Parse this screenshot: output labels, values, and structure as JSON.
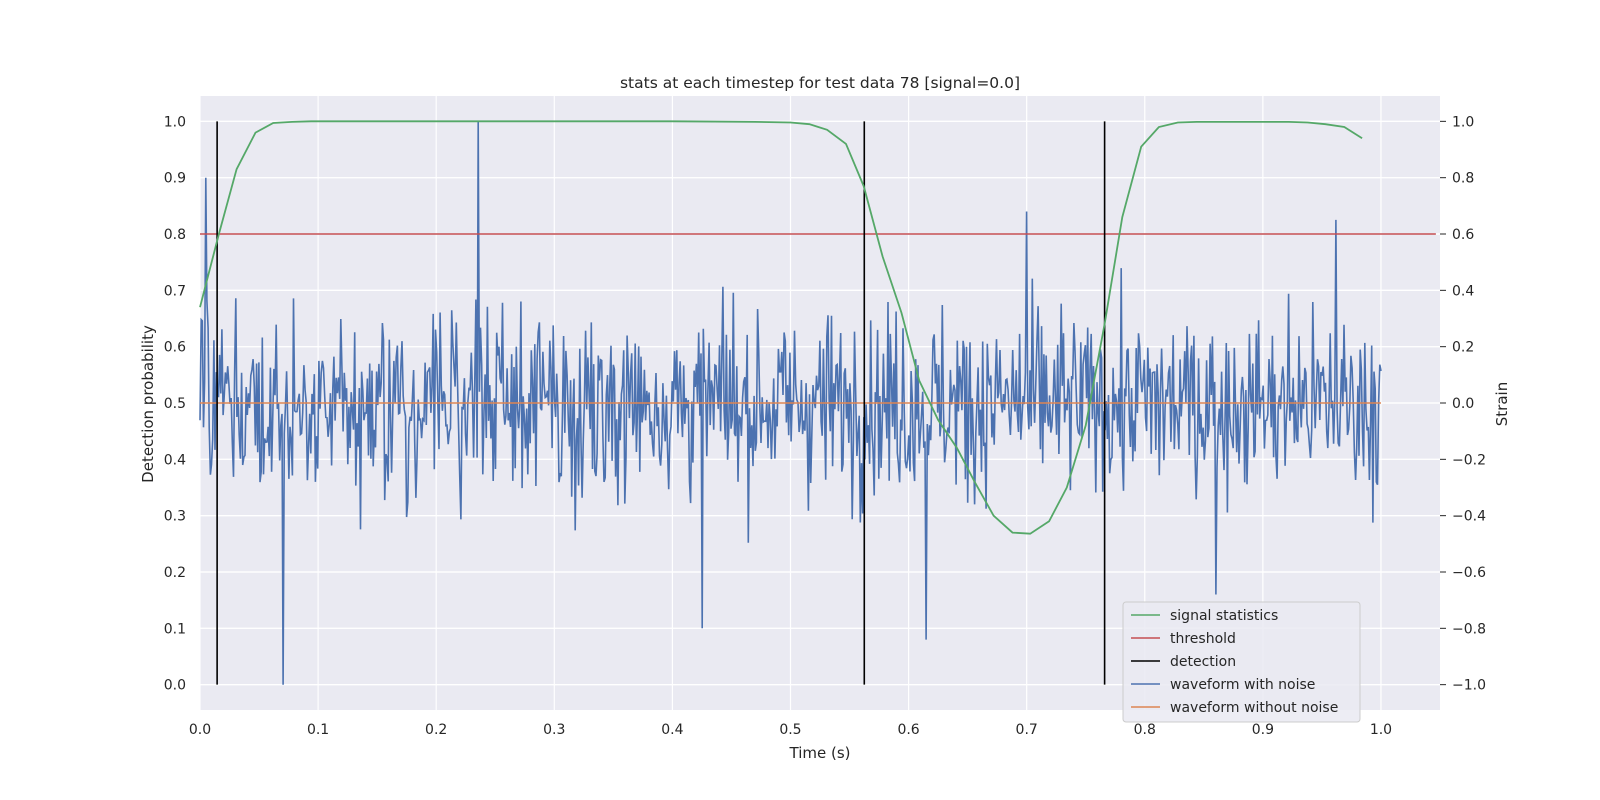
{
  "chart_data": {
    "type": "line",
    "title": "stats at each timestep for test data 78 [signal=0.0]",
    "xlabel": "Time (s)",
    "ylabel": "Detection probability",
    "y2label": "Strain",
    "xlim": [
      0.0,
      1.05
    ],
    "ylim": [
      -0.045,
      1.045
    ],
    "y2lim": [
      -1.09,
      1.09
    ],
    "grid": true,
    "legend_position": "lower-right",
    "xticks": [
      "0.0",
      "0.1",
      "0.2",
      "0.3",
      "0.4",
      "0.5",
      "0.6",
      "0.7",
      "0.8",
      "0.9",
      "1.0"
    ],
    "yticks": [
      "0.0",
      "0.1",
      "0.2",
      "0.3",
      "0.4",
      "0.5",
      "0.6",
      "0.7",
      "0.8",
      "0.9",
      "1.0"
    ],
    "y2ticks": [
      "−1.0",
      "−0.8",
      "−0.6",
      "−0.4",
      "−0.2",
      "0.0",
      "0.2",
      "0.4",
      "0.6",
      "0.8",
      "1.0"
    ],
    "colors": {
      "signal_statistics": "#55a868",
      "threshold": "#c44e52",
      "detection": "#000000",
      "waveform_with_noise": "#4c72b0",
      "waveform_without_noise": "#dd8452"
    },
    "series": [
      {
        "name": "signal statistics",
        "axis": "left",
        "x": [
          0.0,
          0.016,
          0.031,
          0.047,
          0.062,
          0.078,
          0.094,
          0.125,
          0.2,
          0.3,
          0.4,
          0.47,
          0.5,
          0.516,
          0.531,
          0.547,
          0.562,
          0.578,
          0.594,
          0.609,
          0.625,
          0.641,
          0.656,
          0.672,
          0.688,
          0.703,
          0.719,
          0.734,
          0.75,
          0.766,
          0.781,
          0.797,
          0.812,
          0.828,
          0.844,
          0.875,
          0.9,
          0.922,
          0.938,
          0.953,
          0.969,
          0.984
        ],
        "y": [
          0.67,
          0.8,
          0.915,
          0.98,
          0.997,
          0.999,
          1.0,
          1.0,
          1.0,
          1.0,
          1.0,
          0.999,
          0.998,
          0.995,
          0.985,
          0.96,
          0.885,
          0.76,
          0.66,
          0.54,
          0.47,
          0.42,
          0.36,
          0.3,
          0.27,
          0.268,
          0.29,
          0.35,
          0.46,
          0.64,
          0.83,
          0.955,
          0.99,
          0.998,
          0.999,
          0.999,
          0.999,
          0.999,
          0.998,
          0.995,
          0.99,
          0.97
        ]
      },
      {
        "name": "threshold",
        "axis": "left",
        "x": [
          0.0,
          1.0465
        ],
        "y": [
          0.8,
          0.8
        ]
      },
      {
        "name": "detection",
        "axis": "left",
        "x": [
          0.0145,
          0.5625,
          0.766
        ],
        "y_range": [
          0.0,
          1.0
        ]
      },
      {
        "name": "waveform with noise",
        "axis": "right",
        "x_range": [
          0.0,
          1.0
        ],
        "points": 1024,
        "y_range_shown": [
          -1.0,
          1.0
        ],
        "notable": [
          {
            "x": 0.005,
            "y": 0.8
          },
          {
            "x": 0.07,
            "y": -1.0
          },
          {
            "x": 0.236,
            "y": 1.0
          },
          {
            "x": 0.425,
            "y": -0.8
          },
          {
            "x": 0.615,
            "y": -0.84
          },
          {
            "x": 0.7,
            "y": 0.68
          },
          {
            "x": 0.86,
            "y": -0.68
          },
          {
            "x": 0.962,
            "y": 0.65
          }
        ]
      },
      {
        "name": "waveform without noise",
        "axis": "right",
        "x": [
          0.0,
          1.0
        ],
        "y": [
          0.0,
          0.0
        ]
      }
    ]
  }
}
